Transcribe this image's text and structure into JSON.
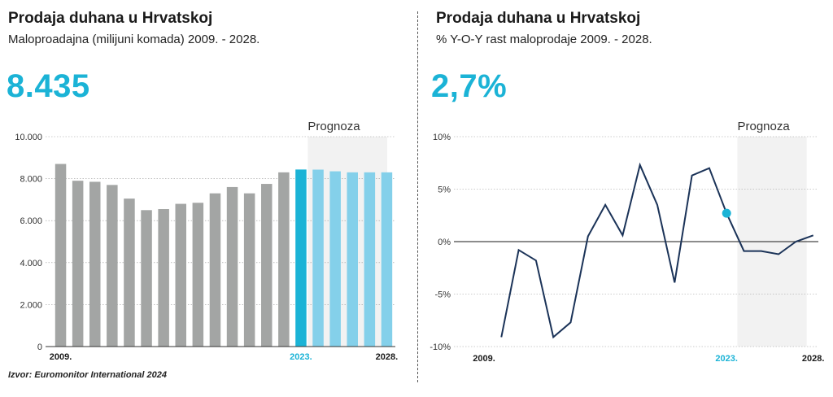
{
  "left": {
    "title": "Prodaja duhana u Hrvatskoj",
    "subtitle": "Maloproadajna (milijuni komada) 2009. - 2028.",
    "kpi": "8.435",
    "forecast_label": "Prognoza"
  },
  "right": {
    "title": "Prodaja duhana u Hrvatskoj",
    "subtitle": "% Y-O-Y rast maloprodaje 2009. - 2028.",
    "kpi": "2,7%",
    "forecast_label": "Prognoza"
  },
  "source": "Izvor: Euromonitor International 2024",
  "colors": {
    "history_bar": "#a3a5a4",
    "current_bar": "#1bb3d6",
    "forecast_bar": "#84d0ea",
    "line": "#1b3358",
    "highlight_point": "#1bb3d6",
    "forecast_band": "#f2f2f2",
    "accent_text": "#1bb3d6"
  },
  "chart_data": [
    {
      "type": "bar",
      "title": "Prodaja duhana u Hrvatskoj",
      "ylim": [
        0,
        10000
      ],
      "y_ticks": [
        "0",
        "2.000",
        "4.000",
        "6.000",
        "8.000",
        "10.000"
      ],
      "x_tick_labels": [
        "2009.",
        "2023.",
        "2028."
      ],
      "categories": [
        "2009",
        "2010",
        "2011",
        "2012",
        "2013",
        "2014",
        "2015",
        "2016",
        "2017",
        "2018",
        "2019",
        "2020",
        "2021",
        "2022",
        "2023",
        "2024",
        "2025",
        "2026",
        "2027",
        "2028"
      ],
      "values": [
        8700,
        7900,
        7850,
        7700,
        7050,
        6500,
        6550,
        6800,
        6850,
        7300,
        7600,
        7300,
        7750,
        8300,
        8435,
        8430,
        8350,
        8300,
        8300,
        8300
      ],
      "highlight": "2023",
      "forecast_from": "2024",
      "grid": true
    },
    {
      "type": "line",
      "title": "Prodaja duhana u Hrvatskoj",
      "ylim": [
        -10,
        10
      ],
      "y_ticks": [
        "-10%",
        "-5%",
        "0%",
        "5%",
        "10%"
      ],
      "x_tick_labels": [
        "2009.",
        "2023.",
        "2028."
      ],
      "x": [
        "2010",
        "2011",
        "2012",
        "2013",
        "2014",
        "2015",
        "2016",
        "2017",
        "2018",
        "2019",
        "2020",
        "2021",
        "2022",
        "2023",
        "2024",
        "2025",
        "2026",
        "2027",
        "2028"
      ],
      "values": [
        -9.1,
        -0.8,
        -1.8,
        -9.1,
        -7.7,
        0.5,
        3.5,
        0.6,
        7.3,
        3.5,
        -3.9,
        6.3,
        7.0,
        2.7,
        -0.9,
        -0.9,
        -1.2,
        0.0,
        0.6
      ],
      "highlight": "2023",
      "forecast_from": "2024",
      "grid": true
    }
  ]
}
